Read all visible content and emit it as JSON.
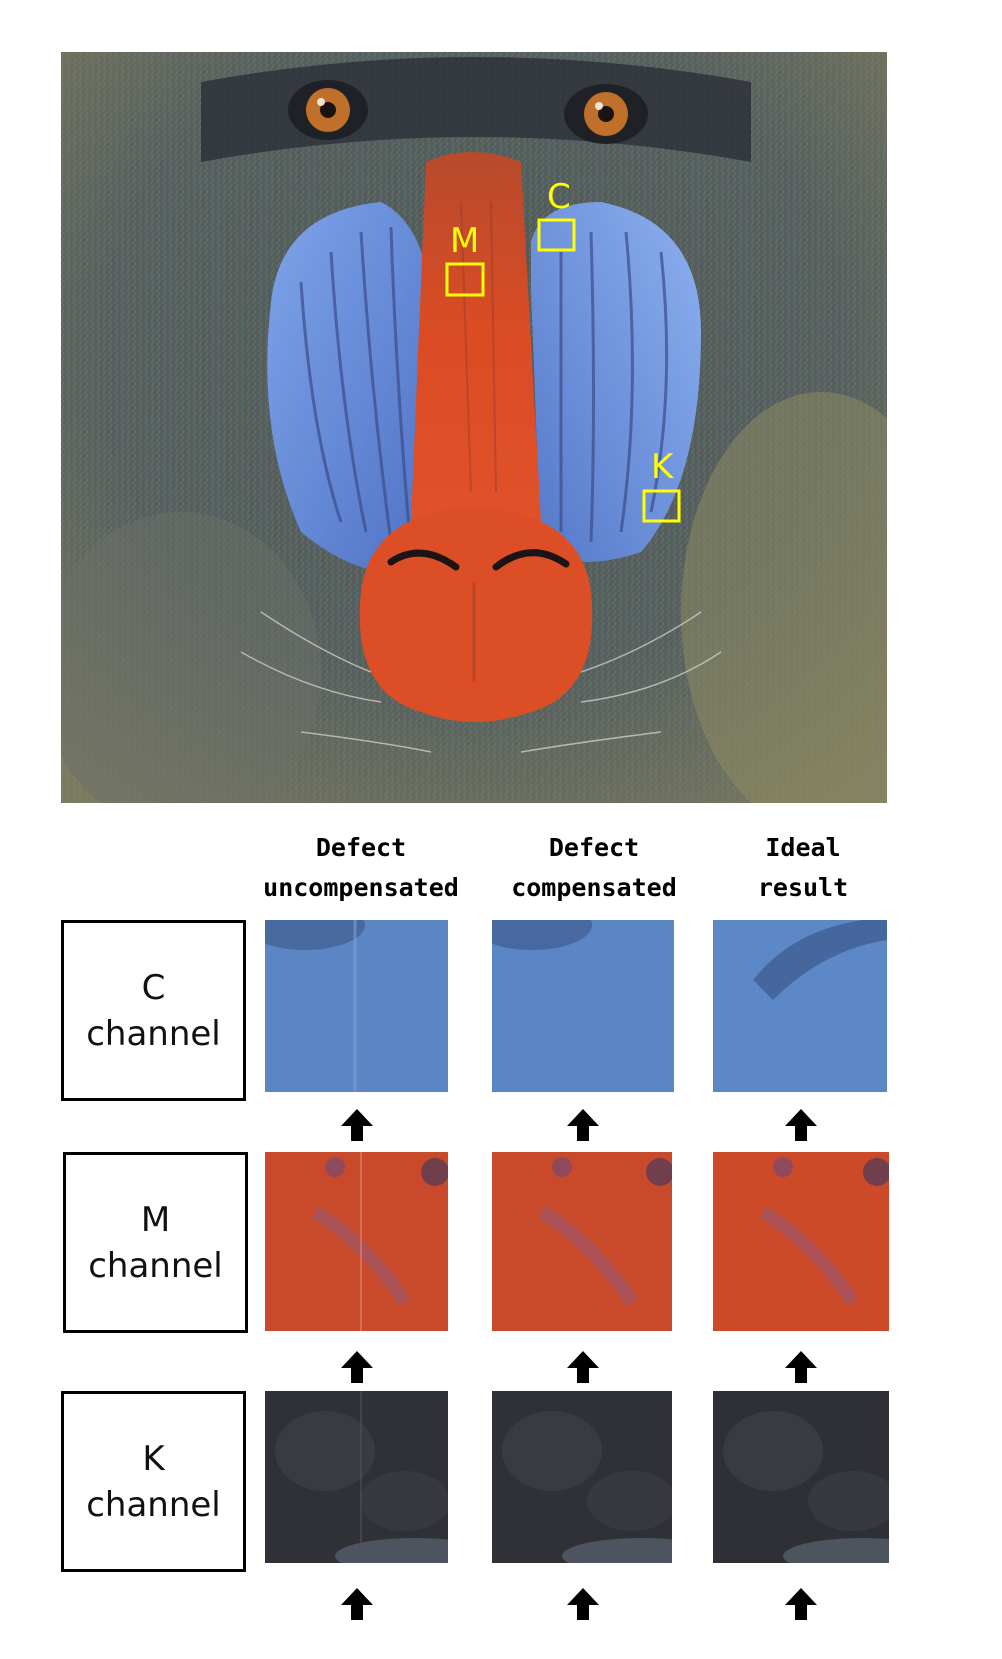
{
  "main_image": {
    "roi_labels": [
      "C",
      "M",
      "K"
    ],
    "roi_box_color": "#ffff00"
  },
  "columns": [
    {
      "line1": "Defect",
      "line2": "uncompensated"
    },
    {
      "line1": "Defect",
      "line2": "compensated"
    },
    {
      "line1": "Ideal",
      "line2": "result"
    }
  ],
  "rows": [
    {
      "letter": "C",
      "word": "channel",
      "patch_color": "#5a86c8"
    },
    {
      "letter": "M",
      "word": "channel",
      "patch_color": "#cc4a2a"
    },
    {
      "letter": "K",
      "word": "channel",
      "patch_color": "#2e3035"
    }
  ],
  "colors": {
    "cyan_cheek": "#6a92dc",
    "nose_red": "#d94a25",
    "fur_dark": "#4a5560",
    "fur_light": "#9a9870"
  },
  "arrow_icon": "up-arrow-icon"
}
